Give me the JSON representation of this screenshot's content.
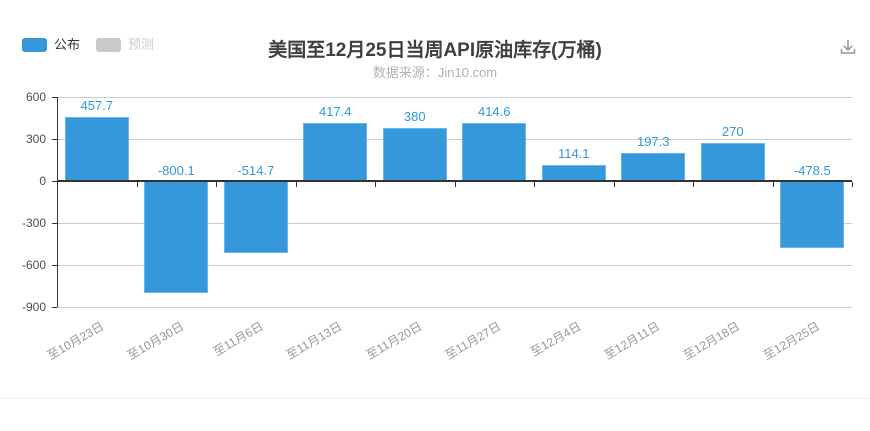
{
  "header": {
    "legend": [
      {
        "label": "公布",
        "color": "#3498db",
        "text_color": "#333333",
        "active": true
      },
      {
        "label": "预测",
        "color": "#c9c9c9",
        "text_color": "#cccccc",
        "active": false
      }
    ],
    "download_icon": "download-icon",
    "icon_color": "#999999"
  },
  "chart_data": {
    "type": "bar",
    "title": "美国至12月25日当周API原油库存(万桶)",
    "subtitle": "数据来源：Jin10.com",
    "categories": [
      "至10月23日",
      "至10月30日",
      "至11月6日",
      "至11月13日",
      "至11月20日",
      "至11月27日",
      "至12月4日",
      "至12月11日",
      "至12月18日",
      "至12月25日"
    ],
    "series": [
      {
        "name": "公布",
        "color": "#3498db",
        "values": [
          457.7,
          -800.1,
          -514.7,
          417.4,
          380,
          414.6,
          114.1,
          197.3,
          270,
          -478.5
        ]
      },
      {
        "name": "预测",
        "color": "#c9c9c9",
        "values": []
      }
    ],
    "yticks": [
      600,
      300,
      0,
      -300,
      -600,
      -900
    ],
    "ylim": [
      -900,
      600
    ],
    "grid": true,
    "legend_position": "top-left",
    "value_label_color": "#3498db",
    "axis_label_color": "#4d4d4d",
    "category_label_color": "#999999",
    "grid_color": "#cccccc",
    "axis_line_color": "#333333"
  }
}
